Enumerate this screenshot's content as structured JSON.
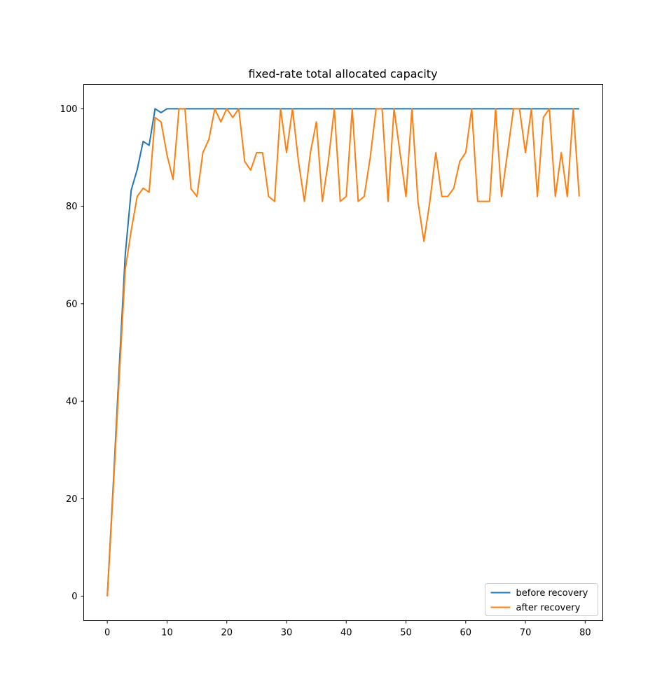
{
  "chart_data": {
    "type": "line",
    "title": "fixed-rate total allocated capacity",
    "xlabel": "",
    "ylabel": "",
    "xlim": [
      -3.95,
      82.95
    ],
    "ylim": [
      -5,
      105
    ],
    "xticks": [
      0,
      10,
      20,
      30,
      40,
      50,
      60,
      70,
      80
    ],
    "yticks": [
      0,
      20,
      40,
      60,
      80,
      100
    ],
    "grid": false,
    "legend_position": "lower-right",
    "x": [
      0,
      1,
      2,
      3,
      4,
      5,
      6,
      7,
      8,
      9,
      10,
      11,
      12,
      13,
      14,
      15,
      16,
      17,
      18,
      19,
      20,
      21,
      22,
      23,
      24,
      25,
      26,
      27,
      28,
      29,
      30,
      31,
      32,
      33,
      34,
      35,
      36,
      37,
      38,
      39,
      40,
      41,
      42,
      43,
      44,
      45,
      46,
      47,
      48,
      49,
      50,
      51,
      52,
      53,
      54,
      55,
      56,
      57,
      58,
      59,
      60,
      61,
      62,
      63,
      64,
      65,
      66,
      67,
      68,
      69,
      70,
      71,
      72,
      73,
      74,
      75,
      76,
      77,
      78,
      79
    ],
    "series": [
      {
        "name": "before recovery",
        "color": "#1f77b4",
        "values": [
          0,
          23,
          47,
          70,
          83.3,
          87.5,
          93.3,
          92.5,
          100,
          99.2,
          100,
          100,
          100,
          100,
          100,
          100,
          100,
          100,
          100,
          100,
          100,
          100,
          100,
          100,
          100,
          100,
          100,
          100,
          100,
          100,
          100,
          100,
          100,
          100,
          100,
          100,
          100,
          100,
          100,
          100,
          100,
          100,
          100,
          100,
          100,
          100,
          100,
          100,
          100,
          100,
          100,
          100,
          100,
          100,
          100,
          100,
          100,
          100,
          100,
          100,
          100,
          100,
          100,
          100,
          100,
          100,
          100,
          100,
          100,
          100,
          100,
          100,
          100,
          100,
          100,
          100,
          100,
          100,
          100,
          100
        ]
      },
      {
        "name": "after recovery",
        "color": "#ff7f0e",
        "values": [
          0,
          22,
          45,
          67,
          75,
          82,
          83.7,
          82.9,
          98.2,
          97.3,
          90.5,
          85.5,
          100,
          100,
          83.6,
          82,
          91,
          93.7,
          100,
          97.3,
          100,
          98.2,
          100,
          89.2,
          87.4,
          91,
          91,
          82,
          81,
          100,
          91,
          100,
          89.2,
          81,
          91,
          97.3,
          81,
          89.2,
          100,
          81,
          82,
          100,
          81,
          82,
          89.9,
          100,
          100,
          81,
          100,
          91,
          82,
          100,
          81,
          72.8,
          81,
          91,
          82,
          82,
          83.7,
          89.2,
          91,
          100,
          81,
          81,
          81,
          100,
          82,
          91,
          100,
          100,
          91,
          100,
          82,
          98.2,
          100,
          82,
          91,
          82,
          100,
          82
        ]
      }
    ]
  }
}
